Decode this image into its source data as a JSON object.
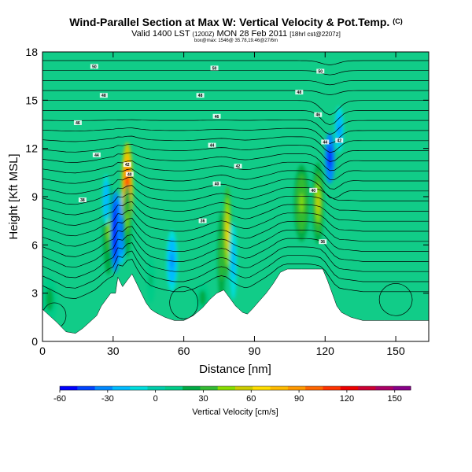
{
  "header": {
    "title": "Wind-Parallel Section at Max W: Vertical Velocity & Pot.Temp.",
    "copyright": "(C)",
    "valid_main": "Valid 1400 LST",
    "valid_init": "(1200Z)",
    "valid_date": "MON 28 Feb 2011",
    "valid_run": "[18hrl cst@2207z]",
    "endpoints": "box@max: 1546@ 35.78,19.46@27/6m"
  },
  "chart_data": {
    "type": "heatmap",
    "xlabel": "Distance [nm]",
    "ylabel": "Height [Kft MSL]",
    "xlim": [
      0,
      164
    ],
    "ylim": [
      0,
      18
    ],
    "xticks": [
      "0",
      "30",
      "60",
      "90",
      "120",
      "150"
    ],
    "yticks": [
      "0",
      "3",
      "6",
      "9",
      "12",
      "15",
      "18"
    ],
    "colorbar": {
      "label": "Vertical Velocity [cm/s]",
      "range": [
        -60,
        160
      ],
      "ticks": [
        "-60",
        "-30",
        "0",
        "30",
        "60",
        "90",
        "120",
        "150"
      ],
      "colors": [
        "#0000ff",
        "#0044ff",
        "#0088ff",
        "#00bbff",
        "#00dddd",
        "#00ccaa",
        "#00cc88",
        "#00aa44",
        "#33bb33",
        "#88dd00",
        "#cccc00",
        "#ffdd00",
        "#ffbb00",
        "#ff9900",
        "#ff6600",
        "#ff3300",
        "#ee0000",
        "#cc0033",
        "#aa0066",
        "#880088"
      ]
    },
    "terrain": [
      {
        "x": 0,
        "z": 2.0
      },
      {
        "x": 6,
        "z": 1.2
      },
      {
        "x": 10,
        "z": 0.6
      },
      {
        "x": 14,
        "z": 0.5
      },
      {
        "x": 17,
        "z": 0.8
      },
      {
        "x": 20,
        "z": 1.2
      },
      {
        "x": 23,
        "z": 1.6
      },
      {
        "x": 25,
        "z": 2.2
      },
      {
        "x": 27,
        "z": 2.6
      },
      {
        "x": 29,
        "z": 3.0
      },
      {
        "x": 31,
        "z": 3.0
      },
      {
        "x": 32,
        "z": 4.0
      },
      {
        "x": 34,
        "z": 3.4
      },
      {
        "x": 36,
        "z": 3.8
      },
      {
        "x": 38,
        "z": 4.2
      },
      {
        "x": 40,
        "z": 3.6
      },
      {
        "x": 42,
        "z": 3.0
      },
      {
        "x": 44,
        "z": 2.4
      },
      {
        "x": 46,
        "z": 2.0
      },
      {
        "x": 48,
        "z": 1.8
      },
      {
        "x": 52,
        "z": 1.5
      },
      {
        "x": 56,
        "z": 1.3
      },
      {
        "x": 60,
        "z": 1.3
      },
      {
        "x": 64,
        "z": 1.6
      },
      {
        "x": 68,
        "z": 2.1
      },
      {
        "x": 71,
        "z": 2.6
      },
      {
        "x": 74,
        "z": 3.0
      },
      {
        "x": 77,
        "z": 3.2
      },
      {
        "x": 80,
        "z": 2.6
      },
      {
        "x": 82,
        "z": 2.2
      },
      {
        "x": 85,
        "z": 1.8
      },
      {
        "x": 87,
        "z": 1.7
      },
      {
        "x": 89,
        "z": 2.0
      },
      {
        "x": 92,
        "z": 2.5
      },
      {
        "x": 95,
        "z": 3.0
      },
      {
        "x": 98,
        "z": 3.6
      },
      {
        "x": 101,
        "z": 4.3
      },
      {
        "x": 104,
        "z": 4.5
      },
      {
        "x": 110,
        "z": 4.5
      },
      {
        "x": 116,
        "z": 4.5
      },
      {
        "x": 119,
        "z": 4.5
      },
      {
        "x": 121,
        "z": 3.8
      },
      {
        "x": 123,
        "z": 3.0
      },
      {
        "x": 125,
        "z": 2.2
      },
      {
        "x": 127,
        "z": 1.8
      },
      {
        "x": 131,
        "z": 1.5
      },
      {
        "x": 136,
        "z": 1.3
      },
      {
        "x": 145,
        "z": 1.3
      },
      {
        "x": 155,
        "z": 1.3
      },
      {
        "x": 164,
        "z": 1.3
      }
    ],
    "vertical_velocity_cells": [
      {
        "x": 28,
        "z": 7.0,
        "sx": 1.5,
        "sz": 1.8,
        "w": 40
      },
      {
        "x": 31,
        "z": 6.8,
        "sx": 1.2,
        "sz": 1.6,
        "w": -60
      },
      {
        "x": 33.5,
        "z": 7.0,
        "sx": 1.0,
        "sz": 1.4,
        "w": -45
      },
      {
        "x": 36,
        "z": 9.5,
        "sx": 1.5,
        "sz": 1.8,
        "w": 115
      },
      {
        "x": 36,
        "z": 7.5,
        "sx": 1.1,
        "sz": 1.4,
        "w": 40
      },
      {
        "x": 27,
        "z": 8.8,
        "sx": 1.0,
        "sz": 1.0,
        "w": -25
      },
      {
        "x": 55,
        "z": 5.0,
        "sx": 1.5,
        "sz": 1.2,
        "w": -28
      },
      {
        "x": 76,
        "z": 5.2,
        "sx": 1.0,
        "sz": 1.8,
        "w": 35
      },
      {
        "x": 78.5,
        "z": 6.8,
        "sx": 1.0,
        "sz": 1.8,
        "w": 70
      },
      {
        "x": 81,
        "z": 5.0,
        "sx": 1.0,
        "sz": 1.5,
        "w": -22
      },
      {
        "x": 110,
        "z": 8.6,
        "sx": 2.0,
        "sz": 1.5,
        "w": 45
      },
      {
        "x": 117,
        "z": 8.6,
        "sx": 1.5,
        "sz": 1.6,
        "w": 50
      },
      {
        "x": 122,
        "z": 11.4,
        "sx": 1.3,
        "sz": 1.0,
        "w": -55
      },
      {
        "x": 126,
        "z": 13.2,
        "sx": 1.2,
        "sz": 0.9,
        "w": -28
      },
      {
        "x": 3,
        "z": 2.6,
        "sx": 2.0,
        "sz": 0.9,
        "w": 24
      },
      {
        "x": 68,
        "z": 2.7,
        "sx": 1.8,
        "sz": 0.6,
        "w": 22
      },
      {
        "x": 46,
        "z": 3.8,
        "sx": 1.2,
        "sz": 0.9,
        "w": 20
      }
    ],
    "contour_labels": [
      {
        "x": 22,
        "z": 17.1,
        "text": "50"
      },
      {
        "x": 73,
        "z": 17.0,
        "text": "50"
      },
      {
        "x": 118,
        "z": 16.8,
        "text": "50"
      },
      {
        "x": 26,
        "z": 15.3,
        "text": "48"
      },
      {
        "x": 67,
        "z": 15.3,
        "text": "48"
      },
      {
        "x": 109,
        "z": 15.5,
        "text": "48"
      },
      {
        "x": 15,
        "z": 13.6,
        "text": "46"
      },
      {
        "x": 74,
        "z": 14.0,
        "text": "46"
      },
      {
        "x": 117,
        "z": 14.1,
        "text": "46"
      },
      {
        "x": 23,
        "z": 11.6,
        "text": "44"
      },
      {
        "x": 72,
        "z": 12.2,
        "text": "44"
      },
      {
        "x": 120,
        "z": 12.4,
        "text": "44"
      },
      {
        "x": 36,
        "z": 11.0,
        "text": "42"
      },
      {
        "x": 83,
        "z": 10.9,
        "text": "42"
      },
      {
        "x": 126,
        "z": 12.5,
        "text": "42"
      },
      {
        "x": 37,
        "z": 10.4,
        "text": "40"
      },
      {
        "x": 74,
        "z": 9.8,
        "text": "40"
      },
      {
        "x": 115,
        "z": 9.4,
        "text": "40"
      },
      {
        "x": 17,
        "z": 8.8,
        "text": "38"
      },
      {
        "x": 68,
        "z": 7.5,
        "text": "36"
      },
      {
        "x": 119,
        "z": 6.2,
        "text": "36"
      }
    ]
  }
}
